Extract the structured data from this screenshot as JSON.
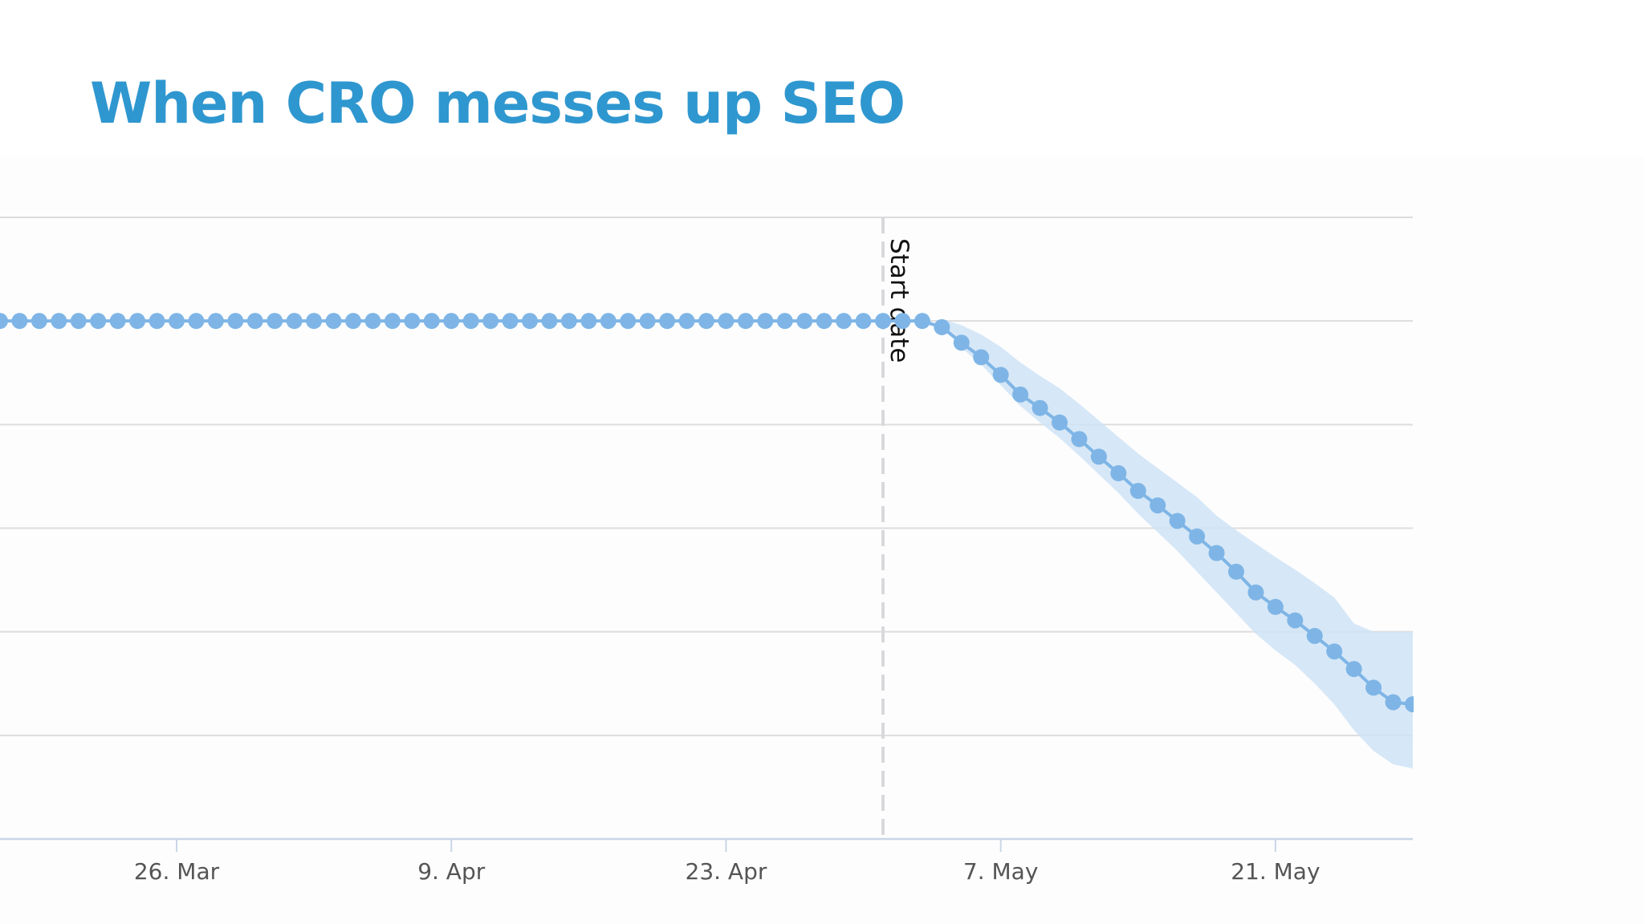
{
  "slide": {
    "title": "When CRO messes up SEO"
  },
  "colors": {
    "title": "#2f97cf",
    "series": "#7eb5e6",
    "band": "#cfe3f6",
    "grid": "#dddddd",
    "annotation_line": "#d9d9dd"
  },
  "chart_data": {
    "type": "line",
    "title": "",
    "xlabel": "",
    "ylabel": "",
    "x_axis": {
      "type": "date",
      "tick_labels": [
        "26. Mar",
        "9. Apr",
        "23. Apr",
        "7. May",
        "21. May"
      ],
      "tick_dates": [
        "2018-03-26",
        "2018-04-09",
        "2018-04-23",
        "2018-05-07",
        "2018-05-21"
      ],
      "range": [
        "2018-03-17",
        "2018-05-28"
      ]
    },
    "y_axis": {
      "tick_labels_visible": false,
      "range": [
        0,
        6
      ],
      "gridlines": [
        0,
        1,
        2,
        3,
        4,
        5,
        6
      ]
    },
    "grid": true,
    "legend": "none",
    "annotations": [
      {
        "type": "vertical-dashed-line",
        "x": "2018-05-01",
        "label": "Start date"
      }
    ],
    "series": [
      {
        "x_start": "2018-03-17",
        "x_step_days": 1,
        "values": [
          5.0,
          5.0,
          5.0,
          5.0,
          5.0,
          5.0,
          5.0,
          5.0,
          5.0,
          5.0,
          5.0,
          5.0,
          5.0,
          5.0,
          5.0,
          5.0,
          5.0,
          5.0,
          5.0,
          5.0,
          5.0,
          5.0,
          5.0,
          5.0,
          5.0,
          5.0,
          5.0,
          5.0,
          5.0,
          5.0,
          5.0,
          5.0,
          5.0,
          5.0,
          5.0,
          5.0,
          5.0,
          5.0,
          5.0,
          5.0,
          5.0,
          5.0,
          5.0,
          5.0,
          5.0,
          5.0,
          5.0,
          5.0,
          4.94,
          4.79,
          4.65,
          4.48,
          4.29,
          4.16,
          4.02,
          3.86,
          3.69,
          3.53,
          3.36,
          3.22,
          3.07,
          2.92,
          2.76,
          2.58,
          2.38,
          2.24,
          2.11,
          1.96,
          1.81,
          1.64,
          1.46,
          1.32,
          1.3
        ],
        "band_upper": [
          5.02,
          4.96,
          4.87,
          4.75,
          4.6,
          4.47,
          4.35,
          4.2,
          4.04,
          3.88,
          3.72,
          3.58,
          3.44,
          3.3,
          3.12,
          2.98,
          2.85,
          2.72,
          2.6,
          2.47,
          2.33,
          2.08,
          2.0,
          2.0,
          2.0
        ],
        "band_lower": [
          4.96,
          4.74,
          4.58,
          4.38,
          4.18,
          4.02,
          3.87,
          3.7,
          3.52,
          3.34,
          3.14,
          2.96,
          2.78,
          2.58,
          2.38,
          2.18,
          1.98,
          1.82,
          1.68,
          1.5,
          1.3,
          1.05,
          0.85,
          0.72,
          0.68
        ]
      }
    ]
  }
}
